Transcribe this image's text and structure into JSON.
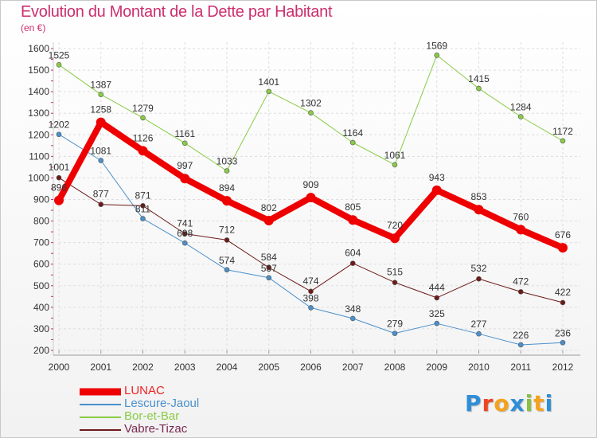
{
  "title": "Evolution du Montant de la Dette par Habitant",
  "subtitle": "(en €)",
  "logo": {
    "text": "Proxiti",
    "colors": [
      "#2e8ed8",
      "#ee4422",
      "#f4a21e",
      "#2e8ed8",
      "#88c040",
      "#f4a21e",
      "#2e8ed8"
    ]
  },
  "chart_data": {
    "type": "line",
    "x": [
      "2000",
      "2001",
      "2002",
      "2003",
      "2004",
      "2005",
      "2006",
      "2007",
      "2008",
      "2009",
      "2010",
      "2011",
      "2012"
    ],
    "ylim": [
      200,
      1600
    ],
    "yticks": [
      200,
      300,
      400,
      500,
      600,
      700,
      800,
      900,
      1000,
      1100,
      1200,
      1300,
      1400,
      1500,
      1600
    ],
    "grid": true,
    "legend": "bottom-left",
    "series": [
      {
        "name": "Bor-et-Bar",
        "color": "#88cc44",
        "width": 1,
        "values": [
          1525,
          1387,
          1279,
          1161,
          1033,
          1401,
          1302,
          1164,
          1061,
          1569,
          1415,
          1284,
          1172
        ]
      },
      {
        "name": "Lescure-Jaoul",
        "color": "#4a90cc",
        "width": 1,
        "values": [
          1202,
          1081,
          811,
          698,
          574,
          537,
          398,
          348,
          279,
          325,
          277,
          226,
          236
        ]
      },
      {
        "name": "Vabre-Tizac",
        "color": "#6e1a1a",
        "width": 1,
        "values": [
          1001,
          877,
          871,
          741,
          712,
          584,
          474,
          604,
          515,
          444,
          532,
          472,
          422
        ]
      },
      {
        "name": "LUNAC",
        "color": "#ee0000",
        "width": 8,
        "values": [
          896,
          1258,
          1126,
          997,
          894,
          802,
          909,
          805,
          720,
          943,
          853,
          760,
          676
        ]
      }
    ],
    "legend_order": [
      "LUNAC",
      "Lescure-Jaoul",
      "Bor-et-Bar",
      "Vabre-Tizac"
    ],
    "point_labels": {
      "LUNAC": [
        "896",
        "1258",
        "1126",
        "997",
        "894",
        "802",
        "909",
        "805",
        "720",
        "943",
        "853",
        "760",
        "676"
      ],
      "Lescure-Jaoul": [
        "1202",
        "1081",
        "811",
        "698",
        "574",
        "537",
        "398",
        "348",
        "279",
        "325",
        "277",
        "226",
        "236"
      ],
      "Bor-et-Bar": [
        "1525",
        "1387",
        "1279",
        "1161",
        "1033",
        "1401",
        "1302",
        "1164",
        "1061",
        "1569",
        "1415",
        "1284",
        "1172"
      ],
      "Vabre-Tizac": [
        "1001",
        "877",
        "871",
        "741",
        "712",
        "584",
        "474",
        "604",
        "515",
        "444",
        "532",
        "472",
        "422"
      ]
    }
  }
}
